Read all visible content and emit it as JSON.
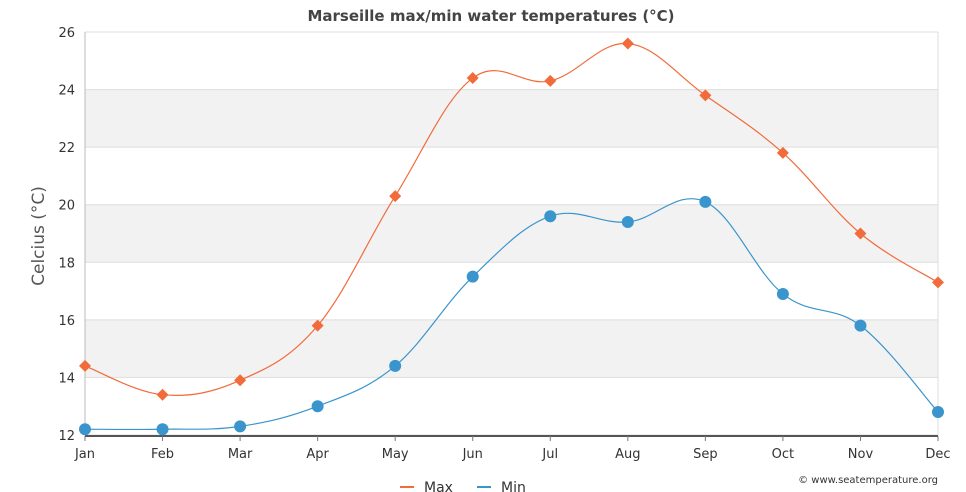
{
  "chart_data": {
    "type": "line",
    "title": "Marseille max/min water temperatures (°C)",
    "ylabel": "Celcius (°C)",
    "xlabel": "",
    "ylim": [
      12,
      26
    ],
    "yticks": [
      12,
      14,
      16,
      18,
      20,
      22,
      24,
      26
    ],
    "categories": [
      "Jan",
      "Feb",
      "Mar",
      "Apr",
      "May",
      "Jun",
      "Jul",
      "Aug",
      "Sep",
      "Oct",
      "Nov",
      "Dec"
    ],
    "series": [
      {
        "name": "Max",
        "color": "#f26b3a",
        "marker": "diamond",
        "values": [
          14.4,
          13.4,
          13.9,
          15.8,
          20.3,
          24.4,
          24.3,
          25.6,
          23.8,
          21.8,
          19.0,
          17.3
        ]
      },
      {
        "name": "Min",
        "color": "#3a95cc",
        "marker": "circle",
        "values": [
          12.2,
          12.2,
          12.3,
          13.0,
          14.4,
          17.5,
          19.6,
          19.4,
          20.1,
          16.9,
          15.8,
          12.8
        ]
      }
    ],
    "grid": true,
    "banded_background": true,
    "legend_position": "bottom-center",
    "credit": "© www.seatemperature.org"
  }
}
